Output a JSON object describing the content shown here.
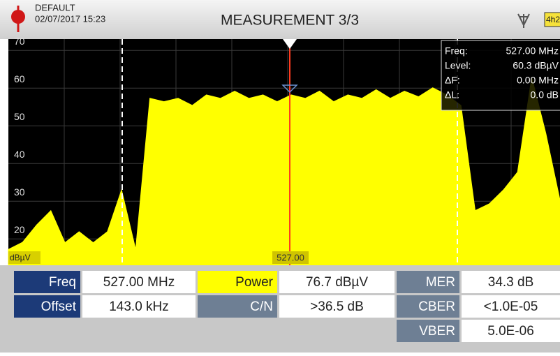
{
  "header": {
    "profile": "DEFAULT",
    "datetime": "02/07/2017 15:23",
    "title": "MEASUREMENT 3/3",
    "battery": "4h2"
  },
  "chart_data": {
    "type": "area",
    "color": "#ffff00",
    "values": [
      17.2,
      19.1,
      23.7,
      27.5,
      19,
      21.9,
      19,
      21.9,
      33,
      17.2,
      57.3,
      56.4,
      57.3,
      55.4,
      58.2,
      57.3,
      59.2,
      57.3,
      58.2,
      56.4,
      58.2,
      57.3,
      59.2,
      56.4,
      58.2,
      57.3,
      59.6,
      57.3,
      59.2,
      57.7,
      60.1,
      58.2,
      55.4,
      27.5,
      29.3,
      33,
      37.7,
      62.9,
      48,
      30.3
    ],
    "ylim": [
      13,
      73
    ],
    "yticks": [
      20,
      30,
      40,
      50,
      60,
      70
    ],
    "y_unit": "dBµV",
    "marker_label": "527.00",
    "grid": true
  },
  "info": [
    {
      "label": "Freq:",
      "value": "527.00 MHz"
    },
    {
      "label": "Level:",
      "value": "60.3 dBµV"
    },
    {
      "label": "ΔF:",
      "value": "0.00 MHz"
    },
    {
      "label": "ΔL:",
      "value": "0.0 dB"
    }
  ],
  "table": {
    "rows": [
      [
        "Freq",
        "527.00 MHz",
        "Power",
        "76.7 dBµV",
        "MER",
        "34.3 dB"
      ],
      [
        "Offset",
        "143.0 kHz",
        "C/N",
        ">36.5 dB",
        "CBER",
        "<1.0E-05"
      ],
      [
        "VBER",
        "5.0E-06"
      ]
    ]
  }
}
